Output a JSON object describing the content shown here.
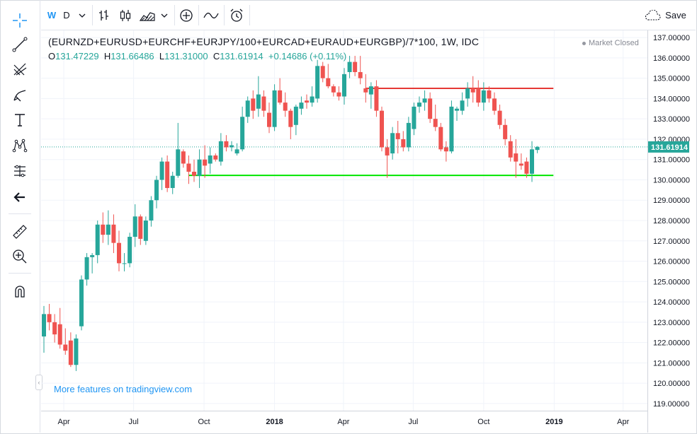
{
  "toolbar": {
    "interval": "W",
    "interval_alt": "D",
    "save_label": "Save"
  },
  "legend": {
    "symbol": "(EURNZD+EURUSD+EURCHF+EURJPY/100+EURCAD+EURAUD+EURGBP)/7*100, 1W, IDC",
    "open_label": "O",
    "open": "131.47229",
    "high_label": "H",
    "high": "131.66486",
    "low_label": "L",
    "low": "131.31000",
    "close_label": "C",
    "close": "131.61914",
    "change": "+0.14686 (+0.11%)"
  },
  "status": {
    "market": "Market Closed"
  },
  "promo": {
    "text": "More features on tradingview.com"
  },
  "colors": {
    "up": "#26a69a",
    "down": "#ef5350",
    "resistance": "#e53935",
    "support": "#00e600",
    "last_price_tag": "#26a69a",
    "grid": "#f0f3fa"
  },
  "chart_data": {
    "type": "candlestick",
    "timeframe": "1W",
    "source": "IDC",
    "y_axis": {
      "range": [
        118.65,
        137.35
      ],
      "ticks": [
        "119.00000",
        "120.00000",
        "121.00000",
        "122.00000",
        "123.00000",
        "124.00000",
        "125.00000",
        "126.00000",
        "127.00000",
        "128.00000",
        "129.00000",
        "130.00000",
        "131.00000",
        "132.00000",
        "133.00000",
        "134.00000",
        "135.00000",
        "136.00000",
        "137.00000"
      ],
      "tick_values": [
        119,
        120,
        121,
        122,
        123,
        124,
        125,
        126,
        127,
        128,
        129,
        130,
        131,
        132,
        133,
        134,
        135,
        136,
        137
      ]
    },
    "x_axis": {
      "labels": [
        "Apr",
        "Jul",
        "Oct",
        "2018",
        "Apr",
        "Jul",
        "Oct",
        "2019",
        "Apr"
      ],
      "label_dates": [
        "2017-04-01",
        "2017-07-01",
        "2017-10-01",
        "2018-01-01",
        "2018-04-01",
        "2018-07-01",
        "2018-10-01",
        "2019-01-01",
        "2019-04-01"
      ],
      "bold": [
        "2018",
        "2019"
      ],
      "range": [
        "2017-03-06",
        "2019-04-29"
      ]
    },
    "last_price": {
      "value": 131.61914,
      "label": "131.61914"
    },
    "horizontal_lines": [
      {
        "name": "resistance",
        "price": 134.5,
        "from": "2018-04-30",
        "to": "2018-12-31"
      },
      {
        "name": "support",
        "price": 130.22,
        "from": "2017-09-11",
        "to": "2018-12-31"
      }
    ],
    "candles": [
      {
        "t": "2017-03-06",
        "o": 122.3,
        "h": 123.8,
        "l": 121.5,
        "c": 123.4
      },
      {
        "t": "2017-03-13",
        "o": 123.4,
        "h": 123.9,
        "l": 122.6,
        "c": 123.0
      },
      {
        "t": "2017-03-20",
        "o": 123.0,
        "h": 123.4,
        "l": 122.0,
        "c": 122.4
      },
      {
        "t": "2017-03-27",
        "o": 122.9,
        "h": 123.7,
        "l": 121.7,
        "c": 121.9
      },
      {
        "t": "2017-04-03",
        "o": 121.9,
        "h": 122.7,
        "l": 121.4,
        "c": 121.6
      },
      {
        "t": "2017-04-10",
        "o": 122.1,
        "h": 122.5,
        "l": 120.8,
        "c": 120.9
      },
      {
        "t": "2017-04-17",
        "o": 120.9,
        "h": 122.4,
        "l": 120.6,
        "c": 122.2
      },
      {
        "t": "2017-04-24",
        "o": 122.8,
        "h": 125.3,
        "l": 122.6,
        "c": 125.1
      },
      {
        "t": "2017-05-01",
        "o": 125.1,
        "h": 126.4,
        "l": 124.8,
        "c": 126.2
      },
      {
        "t": "2017-05-08",
        "o": 126.2,
        "h": 126.4,
        "l": 125.4,
        "c": 126.3
      },
      {
        "t": "2017-05-15",
        "o": 126.3,
        "h": 128.0,
        "l": 125.9,
        "c": 127.8
      },
      {
        "t": "2017-05-22",
        "o": 127.8,
        "h": 128.4,
        "l": 126.9,
        "c": 127.3
      },
      {
        "t": "2017-05-29",
        "o": 127.3,
        "h": 128.5,
        "l": 126.8,
        "c": 127.8
      },
      {
        "t": "2017-06-05",
        "o": 127.8,
        "h": 128.3,
        "l": 126.4,
        "c": 126.9
      },
      {
        "t": "2017-06-12",
        "o": 126.9,
        "h": 127.5,
        "l": 125.5,
        "c": 125.9
      },
      {
        "t": "2017-06-19",
        "o": 125.9,
        "h": 126.4,
        "l": 125.5,
        "c": 125.9
      },
      {
        "t": "2017-06-26",
        "o": 125.9,
        "h": 127.4,
        "l": 125.7,
        "c": 127.2
      },
      {
        "t": "2017-07-03",
        "o": 127.2,
        "h": 128.8,
        "l": 126.7,
        "c": 128.2
      },
      {
        "t": "2017-07-10",
        "o": 128.2,
        "h": 128.3,
        "l": 126.8,
        "c": 127.1
      },
      {
        "t": "2017-07-17",
        "o": 127.0,
        "h": 128.2,
        "l": 126.8,
        "c": 128.0
      },
      {
        "t": "2017-07-24",
        "o": 128.0,
        "h": 129.2,
        "l": 127.7,
        "c": 129.0
      },
      {
        "t": "2017-07-31",
        "o": 129.0,
        "h": 130.2,
        "l": 128.6,
        "c": 130.0
      },
      {
        "t": "2017-08-07",
        "o": 130.0,
        "h": 131.1,
        "l": 129.5,
        "c": 130.9
      },
      {
        "t": "2017-08-14",
        "o": 130.9,
        "h": 131.2,
        "l": 129.4,
        "c": 129.6
      },
      {
        "t": "2017-08-21",
        "o": 129.6,
        "h": 130.4,
        "l": 129.3,
        "c": 130.2
      },
      {
        "t": "2017-08-28",
        "o": 130.2,
        "h": 132.8,
        "l": 130.1,
        "c": 131.5
      },
      {
        "t": "2017-09-04",
        "o": 131.4,
        "h": 131.5,
        "l": 130.6,
        "c": 130.8
      },
      {
        "t": "2017-09-11",
        "o": 130.8,
        "h": 131.2,
        "l": 129.8,
        "c": 130.4
      },
      {
        "t": "2017-09-18",
        "o": 130.4,
        "h": 131.0,
        "l": 129.9,
        "c": 130.2
      },
      {
        "t": "2017-09-25",
        "o": 130.2,
        "h": 131.5,
        "l": 129.6,
        "c": 131.0
      },
      {
        "t": "2017-10-02",
        "o": 131.0,
        "h": 131.7,
        "l": 130.1,
        "c": 130.7
      },
      {
        "t": "2017-10-09",
        "o": 130.8,
        "h": 131.6,
        "l": 130.3,
        "c": 131.2
      },
      {
        "t": "2017-10-16",
        "o": 131.2,
        "h": 131.3,
        "l": 130.9,
        "c": 131.0
      },
      {
        "t": "2017-10-23",
        "o": 130.9,
        "h": 132.3,
        "l": 130.7,
        "c": 131.9
      },
      {
        "t": "2017-10-30",
        "o": 131.9,
        "h": 132.2,
        "l": 131.4,
        "c": 131.6
      },
      {
        "t": "2017-11-06",
        "o": 131.6,
        "h": 131.9,
        "l": 131.4,
        "c": 131.7
      },
      {
        "t": "2017-11-13",
        "o": 131.3,
        "h": 131.8,
        "l": 131.2,
        "c": 131.5
      },
      {
        "t": "2017-11-20",
        "o": 131.5,
        "h": 133.6,
        "l": 131.4,
        "c": 133.1
      },
      {
        "t": "2017-11-27",
        "o": 133.1,
        "h": 134.1,
        "l": 132.8,
        "c": 133.9
      },
      {
        "t": "2017-12-04",
        "o": 134.0,
        "h": 134.4,
        "l": 133.0,
        "c": 133.4
      },
      {
        "t": "2017-12-11",
        "o": 133.5,
        "h": 135.1,
        "l": 133.1,
        "c": 134.2
      },
      {
        "t": "2017-12-18",
        "o": 134.1,
        "h": 134.4,
        "l": 133.1,
        "c": 133.4
      },
      {
        "t": "2017-12-25",
        "o": 133.3,
        "h": 133.8,
        "l": 132.3,
        "c": 132.6
      },
      {
        "t": "2018-01-01",
        "o": 132.6,
        "h": 134.7,
        "l": 132.4,
        "c": 134.4
      },
      {
        "t": "2018-01-08",
        "o": 134.4,
        "h": 135.0,
        "l": 133.7,
        "c": 133.8
      },
      {
        "t": "2018-01-15",
        "o": 133.8,
        "h": 134.3,
        "l": 133.1,
        "c": 133.4
      },
      {
        "t": "2018-01-22",
        "o": 133.4,
        "h": 133.5,
        "l": 132.0,
        "c": 132.6
      },
      {
        "t": "2018-01-29",
        "o": 132.7,
        "h": 133.7,
        "l": 132.2,
        "c": 133.6
      },
      {
        "t": "2018-02-05",
        "o": 133.5,
        "h": 134.1,
        "l": 133.2,
        "c": 133.8
      },
      {
        "t": "2018-02-12",
        "o": 133.9,
        "h": 134.2,
        "l": 133.5,
        "c": 133.8
      },
      {
        "t": "2018-02-19",
        "o": 133.8,
        "h": 134.6,
        "l": 133.6,
        "c": 134.1
      },
      {
        "t": "2018-02-26",
        "o": 134.0,
        "h": 135.9,
        "l": 133.8,
        "c": 135.6
      },
      {
        "t": "2018-03-05",
        "o": 135.6,
        "h": 135.8,
        "l": 134.8,
        "c": 135.0
      },
      {
        "t": "2018-03-12",
        "o": 135.0,
        "h": 135.7,
        "l": 134.5,
        "c": 134.6
      },
      {
        "t": "2018-03-19",
        "o": 134.6,
        "h": 134.7,
        "l": 134.1,
        "c": 134.3
      },
      {
        "t": "2018-03-26",
        "o": 134.3,
        "h": 134.6,
        "l": 133.9,
        "c": 134.1
      },
      {
        "t": "2018-04-02",
        "o": 134.1,
        "h": 135.5,
        "l": 133.7,
        "c": 135.2
      },
      {
        "t": "2018-04-09",
        "o": 135.3,
        "h": 136.1,
        "l": 135.0,
        "c": 135.8
      },
      {
        "t": "2018-04-16",
        "o": 135.8,
        "h": 136.1,
        "l": 135.1,
        "c": 135.3
      },
      {
        "t": "2018-04-23",
        "o": 135.3,
        "h": 136.1,
        "l": 134.7,
        "c": 135.0
      },
      {
        "t": "2018-04-30",
        "o": 134.5,
        "h": 135.2,
        "l": 133.8,
        "c": 134.3
      },
      {
        "t": "2018-05-07",
        "o": 134.2,
        "h": 134.8,
        "l": 133.5,
        "c": 134.6
      },
      {
        "t": "2018-05-14",
        "o": 134.6,
        "h": 134.9,
        "l": 133.1,
        "c": 133.4
      },
      {
        "t": "2018-05-21",
        "o": 133.4,
        "h": 133.6,
        "l": 131.4,
        "c": 131.6
      },
      {
        "t": "2018-05-28",
        "o": 131.6,
        "h": 132.0,
        "l": 130.1,
        "c": 131.2
      },
      {
        "t": "2018-06-04",
        "o": 131.3,
        "h": 132.6,
        "l": 131.0,
        "c": 132.3
      },
      {
        "t": "2018-06-11",
        "o": 132.3,
        "h": 132.9,
        "l": 131.3,
        "c": 132.0
      },
      {
        "t": "2018-06-18",
        "o": 132.0,
        "h": 132.4,
        "l": 131.4,
        "c": 131.6
      },
      {
        "t": "2018-06-25",
        "o": 131.6,
        "h": 133.1,
        "l": 131.4,
        "c": 132.8
      },
      {
        "t": "2018-07-02",
        "o": 132.5,
        "h": 133.8,
        "l": 132.2,
        "c": 133.6
      },
      {
        "t": "2018-07-09",
        "o": 133.6,
        "h": 134.1,
        "l": 133.3,
        "c": 133.8
      },
      {
        "t": "2018-07-16",
        "o": 133.8,
        "h": 134.4,
        "l": 133.4,
        "c": 134.0
      },
      {
        "t": "2018-07-23",
        "o": 134.0,
        "h": 134.3,
        "l": 132.8,
        "c": 133.0
      },
      {
        "t": "2018-07-30",
        "o": 133.0,
        "h": 133.7,
        "l": 132.4,
        "c": 132.6
      },
      {
        "t": "2018-08-06",
        "o": 132.6,
        "h": 132.8,
        "l": 131.4,
        "c": 131.5
      },
      {
        "t": "2018-08-13",
        "o": 131.6,
        "h": 131.9,
        "l": 130.9,
        "c": 131.4
      },
      {
        "t": "2018-08-20",
        "o": 131.4,
        "h": 133.9,
        "l": 131.3,
        "c": 133.6
      },
      {
        "t": "2018-08-27",
        "o": 133.4,
        "h": 133.6,
        "l": 132.9,
        "c": 133.5
      },
      {
        "t": "2018-09-03",
        "o": 133.4,
        "h": 134.3,
        "l": 133.2,
        "c": 133.9
      },
      {
        "t": "2018-09-10",
        "o": 134.0,
        "h": 134.8,
        "l": 133.6,
        "c": 134.5
      },
      {
        "t": "2018-09-17",
        "o": 134.5,
        "h": 135.1,
        "l": 133.8,
        "c": 134.3
      },
      {
        "t": "2018-09-24",
        "o": 134.5,
        "h": 134.9,
        "l": 133.6,
        "c": 133.8
      },
      {
        "t": "2018-10-01",
        "o": 133.8,
        "h": 134.8,
        "l": 133.4,
        "c": 134.4
      },
      {
        "t": "2018-10-08",
        "o": 134.4,
        "h": 134.6,
        "l": 133.8,
        "c": 134.0
      },
      {
        "t": "2018-10-15",
        "o": 134.0,
        "h": 134.3,
        "l": 133.2,
        "c": 133.4
      },
      {
        "t": "2018-10-22",
        "o": 133.4,
        "h": 133.7,
        "l": 132.5,
        "c": 132.7
      },
      {
        "t": "2018-10-29",
        "o": 132.7,
        "h": 133.0,
        "l": 131.7,
        "c": 132.0
      },
      {
        "t": "2018-11-05",
        "o": 131.9,
        "h": 132.2,
        "l": 130.9,
        "c": 131.1
      },
      {
        "t": "2018-11-12",
        "o": 131.3,
        "h": 132.0,
        "l": 130.1,
        "c": 130.9
      },
      {
        "t": "2018-11-19",
        "o": 130.8,
        "h": 131.3,
        "l": 130.5,
        "c": 130.7
      },
      {
        "t": "2018-11-26",
        "o": 130.9,
        "h": 131.1,
        "l": 130.1,
        "c": 130.3
      },
      {
        "t": "2018-12-03",
        "o": 130.3,
        "h": 131.9,
        "l": 129.9,
        "c": 131.5
      },
      {
        "t": "2018-12-10",
        "o": 131.47,
        "h": 131.66,
        "l": 131.31,
        "c": 131.62
      }
    ]
  }
}
